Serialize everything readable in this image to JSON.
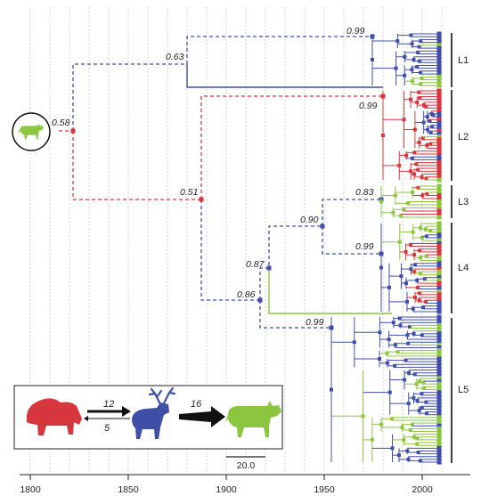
{
  "colors": {
    "bison": "#d8363e",
    "deer": "#3f4fa8",
    "cattle": "#8cc63f",
    "grid": "#c8c8c8",
    "axis": "#222222"
  },
  "axis": {
    "ticks": [
      "1800",
      "1850",
      "1900",
      "1950",
      "2000"
    ]
  },
  "posteriors": {
    "root": "0.58",
    "upper": "0.63",
    "l1": "0.99",
    "lower": "0.51",
    "l2": "0.99",
    "l3": "0.83",
    "l3l4": "0.90",
    "l4": "0.99",
    "n087": "0.87",
    "n086": "0.86",
    "l5": "0.99"
  },
  "clades": [
    "L1",
    "L2",
    "L3",
    "L4",
    "L5"
  ],
  "scale_bar": "20.0",
  "inset": {
    "forward_rate": "12",
    "backward_rate": "5",
    "deer_to_cattle_rate": "16",
    "icons": [
      "bison-icon",
      "deer-icon",
      "cattle-icon"
    ]
  },
  "root_host_icon": "cattle-icon"
}
